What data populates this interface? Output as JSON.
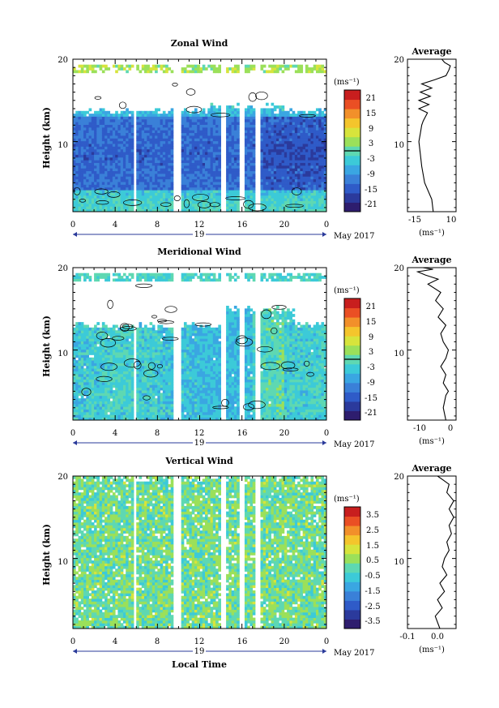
{
  "chart_data": [
    {
      "type": "heatmap",
      "title": "Zonal Wind",
      "ylabel": "Height (km)",
      "y_ticks": [
        "10",
        "20"
      ],
      "ylim": [
        1.5,
        20
      ],
      "x_ticks": [
        "0",
        "4",
        "8",
        "12",
        "16",
        "20",
        "0"
      ],
      "xlim": [
        0,
        24
      ],
      "date_label": "19",
      "month_label": "May 2017",
      "colorbar": {
        "unit": "(ms⁻¹)",
        "ticks": [
          "21",
          "15",
          "9",
          "3",
          "-3",
          "-9",
          "-15",
          "-21"
        ],
        "range": [
          -24,
          24
        ],
        "zero_line": 0
      },
      "profile": {
        "title": "Average",
        "unit": "(ms⁻¹)",
        "x_ticks": [
          "-15",
          "10"
        ],
        "xlim": [
          -22,
          12
        ],
        "y_ticks": [
          "10",
          "20"
        ],
        "points": [
          [
            -4,
            1.5
          ],
          [
            -5,
            3
          ],
          [
            -10,
            5
          ],
          [
            -12,
            7
          ],
          [
            -13,
            8.5
          ],
          [
            -14,
            10
          ],
          [
            -13,
            11
          ],
          [
            -12,
            12
          ],
          [
            -11,
            12.5
          ],
          [
            -8,
            13.5
          ],
          [
            -14,
            14
          ],
          [
            -7,
            14.5
          ],
          [
            -14,
            15
          ],
          [
            -6,
            15.5
          ],
          [
            -13,
            16
          ],
          [
            -5,
            16.5
          ],
          [
            -12,
            17
          ],
          [
            -3,
            17.5
          ],
          [
            5,
            18
          ],
          [
            7,
            18.7
          ],
          [
            8,
            19.2
          ],
          [
            4,
            19.6
          ],
          [
            2,
            20
          ]
        ]
      },
      "contour_level": 0
    },
    {
      "type": "heatmap",
      "title": "Meridional Wind",
      "ylabel": "Height (km)",
      "y_ticks": [
        "10",
        "20"
      ],
      "ylim": [
        1.5,
        20
      ],
      "x_ticks": [
        "0",
        "4",
        "8",
        "12",
        "16",
        "20",
        "0"
      ],
      "xlim": [
        0,
        24
      ],
      "date_label": "19",
      "month_label": "May 2017",
      "colorbar": {
        "unit": "(ms⁻¹)",
        "ticks": [
          "21",
          "15",
          "9",
          "3",
          "-3",
          "-9",
          "-15",
          "-21"
        ],
        "range": [
          -24,
          24
        ],
        "zero_line": 0
      },
      "profile": {
        "title": "Average",
        "unit": "(ms⁻¹)",
        "x_ticks": [
          "-10",
          "0"
        ],
        "xlim": [
          -16,
          3
        ],
        "y_ticks": [
          "10",
          "20"
        ],
        "points": [
          [
            -1,
            1.5
          ],
          [
            -2,
            3
          ],
          [
            -1,
            4.5
          ],
          [
            0,
            5
          ],
          [
            -2,
            6
          ],
          [
            -1,
            7
          ],
          [
            -3,
            8
          ],
          [
            -1,
            9
          ],
          [
            0,
            10
          ],
          [
            -2,
            11
          ],
          [
            -3,
            12
          ],
          [
            -1,
            13
          ],
          [
            -4,
            14
          ],
          [
            -2,
            15
          ],
          [
            -5,
            16
          ],
          [
            -3,
            17
          ],
          [
            -8,
            18
          ],
          [
            -4,
            18.6
          ],
          [
            -9,
            19.1
          ],
          [
            -12,
            19.5
          ],
          [
            -6,
            19.8
          ],
          [
            -10,
            20
          ]
        ]
      },
      "contour_level": 0
    },
    {
      "type": "heatmap",
      "title": "Vertical Wind",
      "xlabel": "Local Time",
      "ylabel": "Height (km)",
      "y_ticks": [
        "10",
        "20"
      ],
      "ylim": [
        1.5,
        20
      ],
      "x_ticks": [
        "0",
        "4",
        "8",
        "12",
        "16",
        "20",
        "0"
      ],
      "xlim": [
        0,
        24
      ],
      "date_label": "19",
      "month_label": "May 2017",
      "colorbar": {
        "unit": "(ms⁻¹)",
        "ticks": [
          "3.5",
          "2.5",
          "1.5",
          "0.5",
          "-0.5",
          "-1.5",
          "-2.5",
          "-3.5"
        ],
        "range": [
          -4,
          4
        ]
      },
      "profile": {
        "title": "Average",
        "unit": "(ms⁻¹)",
        "x_ticks": [
          "-0.1",
          "0.0"
        ],
        "xlim": [
          -0.15,
          0.06
        ],
        "y_ticks": [
          "10",
          "20"
        ],
        "points": [
          [
            -0.01,
            1.5
          ],
          [
            -0.03,
            3
          ],
          [
            0.0,
            4
          ],
          [
            -0.02,
            5
          ],
          [
            0.01,
            6
          ],
          [
            -0.01,
            7
          ],
          [
            0.02,
            8
          ],
          [
            0.0,
            9
          ],
          [
            0.01,
            10
          ],
          [
            0.03,
            11
          ],
          [
            0.02,
            12
          ],
          [
            0.04,
            13
          ],
          [
            0.03,
            14
          ],
          [
            0.05,
            15
          ],
          [
            0.03,
            16
          ],
          [
            0.05,
            17
          ],
          [
            0.02,
            18
          ],
          [
            0.03,
            19
          ],
          [
            0.0,
            19.6
          ],
          [
            -0.02,
            20
          ]
        ]
      }
    }
  ]
}
